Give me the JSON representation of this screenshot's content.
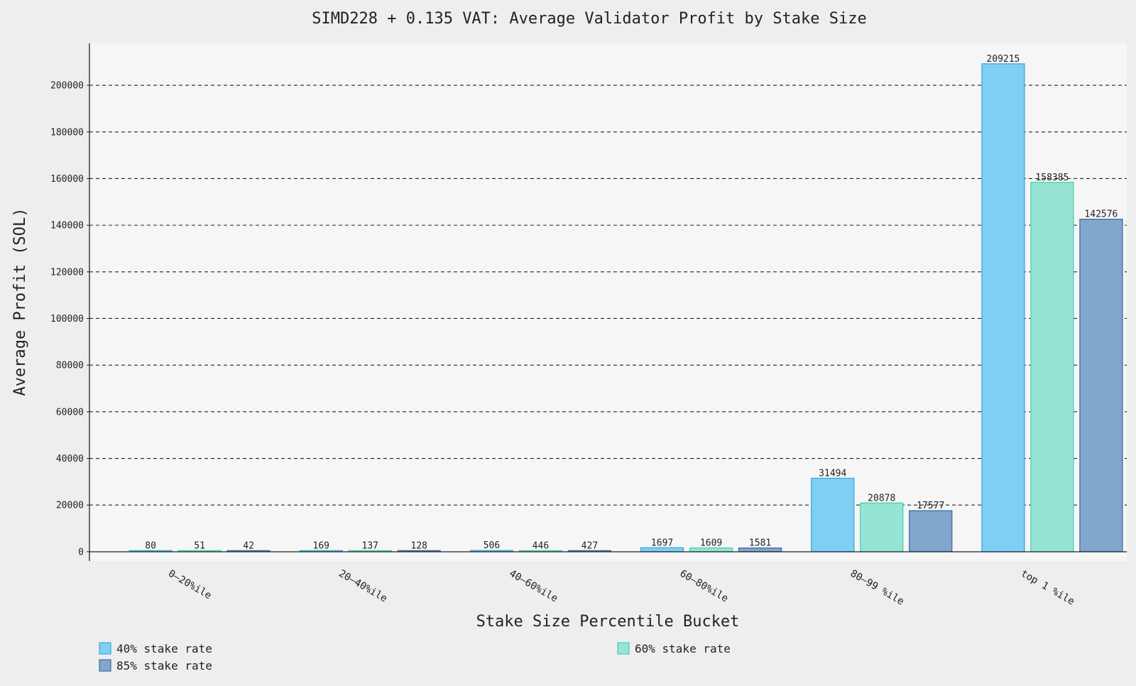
{
  "chart_data": {
    "type": "bar",
    "title": "SIMD228 + 0.135 VAT: Average Validator Profit by Stake Size",
    "xlabel": "Stake Size Percentile Bucket",
    "ylabel": "Average Profit (SOL)",
    "categories": [
      "0–20%ile",
      "20–40%ile",
      "40–60%ile",
      "60–80%ile",
      "80–99 %ile",
      "top 1 %ile"
    ],
    "series": [
      {
        "name": "40% stake rate",
        "values": [
          80,
          169,
          506,
          1697,
          31494,
          209215
        ],
        "color": "#7ecff3",
        "stroke": "#3aa9df"
      },
      {
        "name": "60% stake rate",
        "values": [
          51,
          137,
          446,
          1609,
          20878,
          158385
        ],
        "color": "#96e5d4",
        "stroke": "#4ccfb3"
      },
      {
        "name": "85% stake rate",
        "values": [
          42,
          128,
          427,
          1581,
          17577,
          142576
        ],
        "color": "#81a7cc",
        "stroke": "#3f6da3"
      }
    ],
    "yticks": [
      0,
      20000,
      40000,
      60000,
      80000,
      100000,
      120000,
      140000,
      160000,
      180000,
      200000
    ],
    "ylim": [
      -4000,
      218000
    ],
    "grid": "horizontal dashed",
    "legend_position": "bottom",
    "plot_background": "#f6f6f6",
    "page_background": "#eeeeee"
  }
}
